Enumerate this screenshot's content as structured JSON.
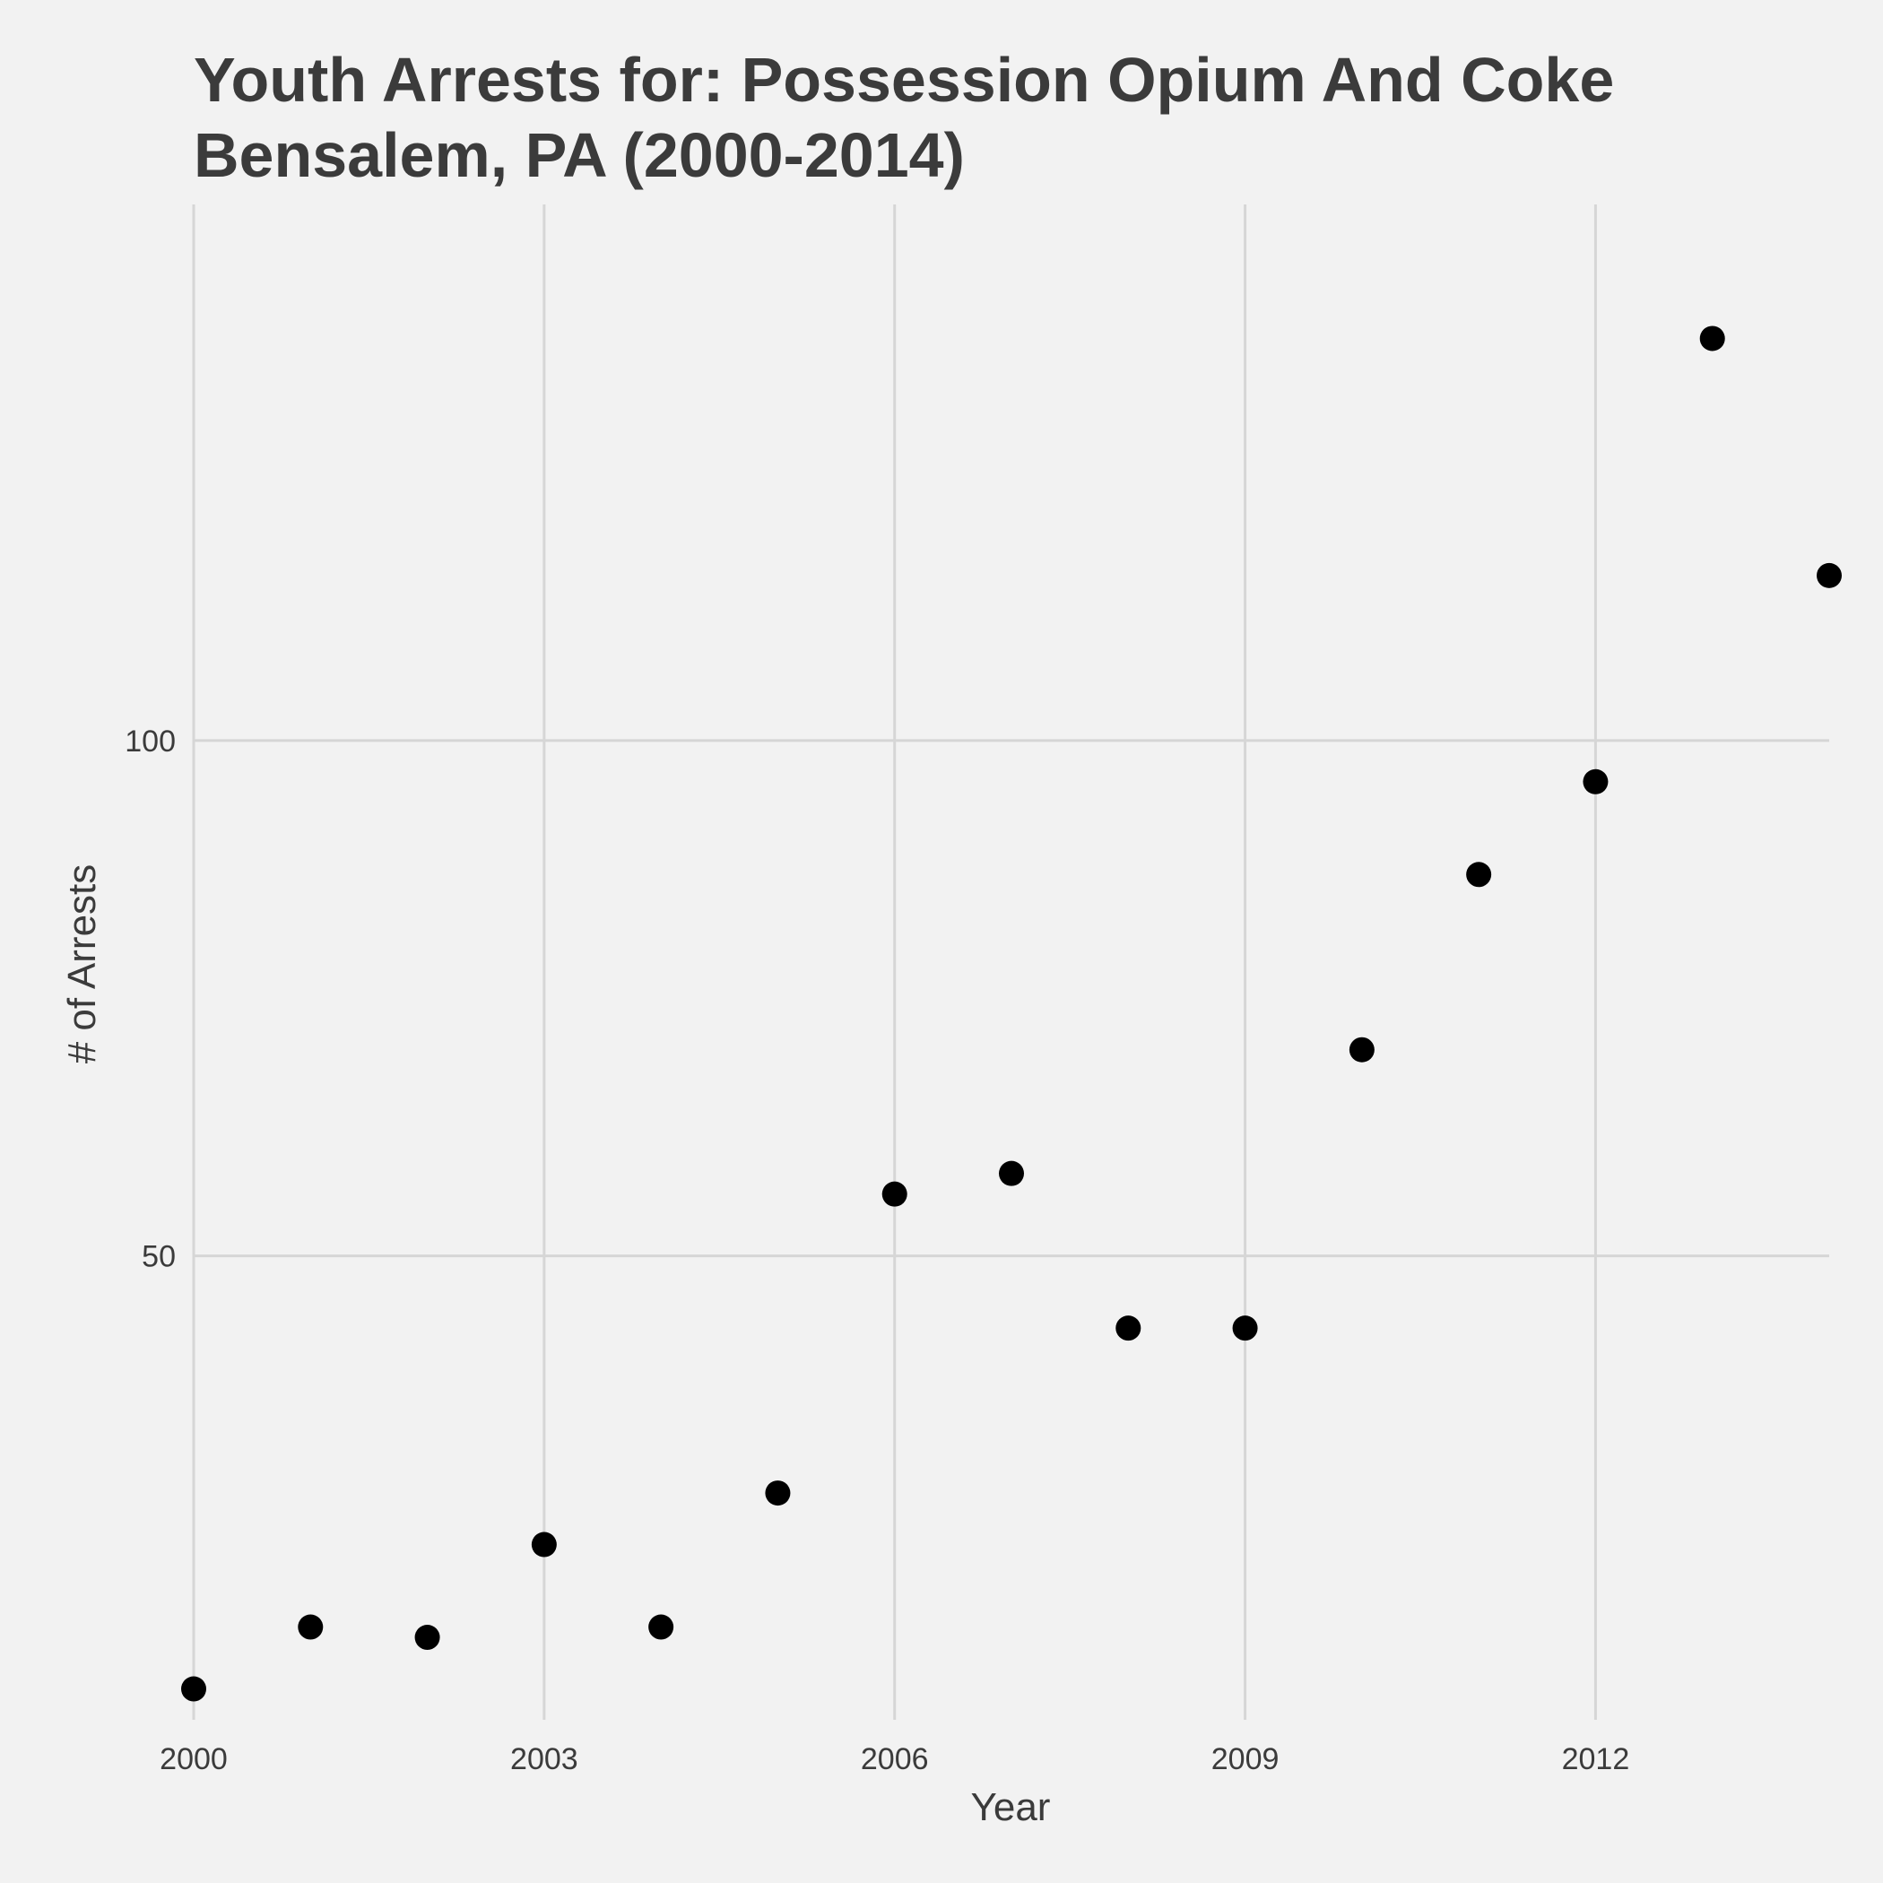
{
  "chart_data": {
    "type": "scatter",
    "title_lines": [
      "Youth Arrests for: Possession Opium And  Coke",
      "Bensalem, PA (2000-2014)"
    ],
    "xlabel": "Year",
    "ylabel": "# of Arrests",
    "x_ticks": [
      2000,
      2003,
      2006,
      2009,
      2012
    ],
    "y_ticks": [
      50,
      100
    ],
    "xlim": [
      2000,
      2014
    ],
    "ylim": [
      5,
      152
    ],
    "grid": true,
    "legend": "none",
    "point_color": "#000000",
    "points": [
      {
        "x": 2000,
        "y": 8
      },
      {
        "x": 2001,
        "y": 14
      },
      {
        "x": 2002,
        "y": 13
      },
      {
        "x": 2003,
        "y": 22
      },
      {
        "x": 2004,
        "y": 14
      },
      {
        "x": 2005,
        "y": 27
      },
      {
        "x": 2006,
        "y": 56
      },
      {
        "x": 2007,
        "y": 58
      },
      {
        "x": 2008,
        "y": 43
      },
      {
        "x": 2009,
        "y": 43
      },
      {
        "x": 2010,
        "y": 70
      },
      {
        "x": 2011,
        "y": 87
      },
      {
        "x": 2012,
        "y": 96
      },
      {
        "x": 2013,
        "y": 139
      },
      {
        "x": 2014,
        "y": 116
      }
    ]
  }
}
